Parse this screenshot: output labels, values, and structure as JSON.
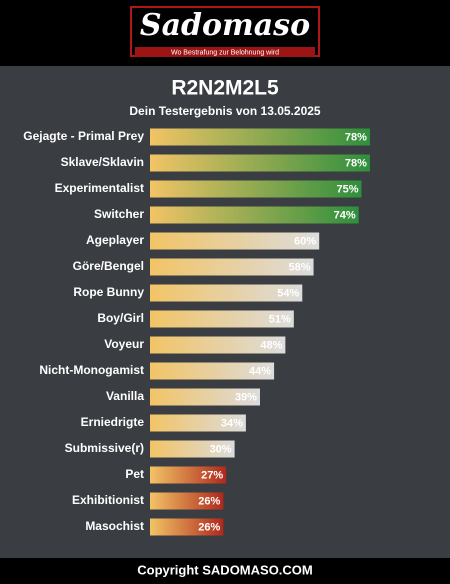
{
  "header": {
    "logo": "Sadomaso",
    "tagline": "Wo Bestrafung zur Belohnung wird"
  },
  "chart_data": {
    "type": "hbar",
    "title": "R2N2M2L5",
    "subtitle": "Dein Testergebnis von 13.05.2025",
    "categories": [
      "Gejagte - Primal Prey",
      "Sklave/Sklavin",
      "Experimentalist",
      "Switcher",
      "Ageplayer",
      "Göre/Bengel",
      "Rope Bunny",
      "Boy/Girl",
      "Voyeur",
      "Nicht-Monogamist",
      "Vanilla",
      "Erniedrigte",
      "Submissive(r)",
      "Pet",
      "Exhibitionist",
      "Masochist"
    ],
    "values": [
      78,
      78,
      75,
      74,
      60,
      58,
      54,
      51,
      48,
      44,
      39,
      34,
      30,
      27,
      26,
      26
    ],
    "value_labels": [
      "78%",
      "78%",
      "75%",
      "74%",
      "60%",
      "58%",
      "54%",
      "51%",
      "48%",
      "44%",
      "39%",
      "34%",
      "30%",
      "27%",
      "26%",
      "26%"
    ],
    "gradient_start": "#f2c466",
    "colors": [
      "#2e8f3c",
      "#2e8f3c",
      "#2e8f3c",
      "#2e8f3c",
      "#dcdcdc",
      "#dcdcdc",
      "#dcdcdc",
      "#dcdcdc",
      "#dcdcdc",
      "#dcdcdc",
      "#dcdcdc",
      "#dcdcdc",
      "#dcdcdc",
      "#b0281c",
      "#b0281c",
      "#b0281c"
    ],
    "xlim": [
      0,
      100
    ]
  },
  "footer": {
    "text": "Copyright SADOMASO.COM"
  }
}
